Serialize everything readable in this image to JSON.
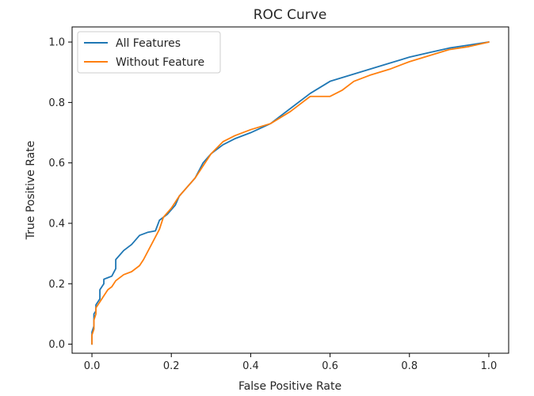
{
  "chart_data": {
    "type": "line",
    "title": "ROC Curve",
    "xlabel": "False Positive Rate",
    "ylabel": "True Positive Rate",
    "xlim": [
      -0.05,
      1.05
    ],
    "ylim": [
      -0.03,
      1.05
    ],
    "xticks": [
      0.0,
      0.2,
      0.4,
      0.6,
      0.8,
      1.0
    ],
    "yticks": [
      0.0,
      0.2,
      0.4,
      0.6,
      0.8,
      1.0
    ],
    "xtick_labels": [
      "0.0",
      "0.2",
      "0.4",
      "0.6",
      "0.8",
      "1.0"
    ],
    "ytick_labels": [
      "0.0",
      "0.2",
      "0.4",
      "0.6",
      "0.8",
      "1.0"
    ],
    "grid": false,
    "legend": "top-left",
    "series": [
      {
        "name": "All Features",
        "color": "#1f77b4",
        "x": [
          0.0,
          0.0,
          0.005,
          0.005,
          0.01,
          0.01,
          0.02,
          0.02,
          0.03,
          0.03,
          0.04,
          0.05,
          0.06,
          0.06,
          0.08,
          0.1,
          0.12,
          0.14,
          0.16,
          0.17,
          0.19,
          0.21,
          0.22,
          0.24,
          0.26,
          0.28,
          0.3,
          0.33,
          0.36,
          0.4,
          0.45,
          0.5,
          0.55,
          0.6,
          0.65,
          0.7,
          0.75,
          0.8,
          0.85,
          0.9,
          0.95,
          1.0
        ],
        "y": [
          0.0,
          0.04,
          0.06,
          0.1,
          0.11,
          0.13,
          0.15,
          0.18,
          0.2,
          0.215,
          0.22,
          0.225,
          0.25,
          0.28,
          0.31,
          0.33,
          0.36,
          0.37,
          0.375,
          0.41,
          0.43,
          0.46,
          0.49,
          0.52,
          0.55,
          0.6,
          0.63,
          0.66,
          0.68,
          0.7,
          0.73,
          0.78,
          0.83,
          0.87,
          0.89,
          0.91,
          0.93,
          0.95,
          0.965,
          0.98,
          0.99,
          1.0
        ]
      },
      {
        "name": "Without Feature",
        "color": "#ff7f0e",
        "x": [
          0.0,
          0.0,
          0.005,
          0.005,
          0.01,
          0.01,
          0.02,
          0.03,
          0.04,
          0.05,
          0.06,
          0.08,
          0.1,
          0.12,
          0.13,
          0.15,
          0.17,
          0.18,
          0.2,
          0.22,
          0.24,
          0.26,
          0.28,
          0.3,
          0.33,
          0.36,
          0.4,
          0.45,
          0.5,
          0.55,
          0.6,
          0.63,
          0.66,
          0.7,
          0.75,
          0.8,
          0.85,
          0.9,
          0.95,
          1.0
        ],
        "y": [
          0.0,
          0.03,
          0.05,
          0.08,
          0.1,
          0.12,
          0.14,
          0.16,
          0.18,
          0.19,
          0.21,
          0.23,
          0.24,
          0.26,
          0.28,
          0.33,
          0.38,
          0.42,
          0.45,
          0.49,
          0.52,
          0.55,
          0.59,
          0.63,
          0.67,
          0.69,
          0.71,
          0.73,
          0.77,
          0.82,
          0.82,
          0.84,
          0.87,
          0.89,
          0.91,
          0.935,
          0.955,
          0.975,
          0.985,
          1.0
        ]
      }
    ]
  }
}
